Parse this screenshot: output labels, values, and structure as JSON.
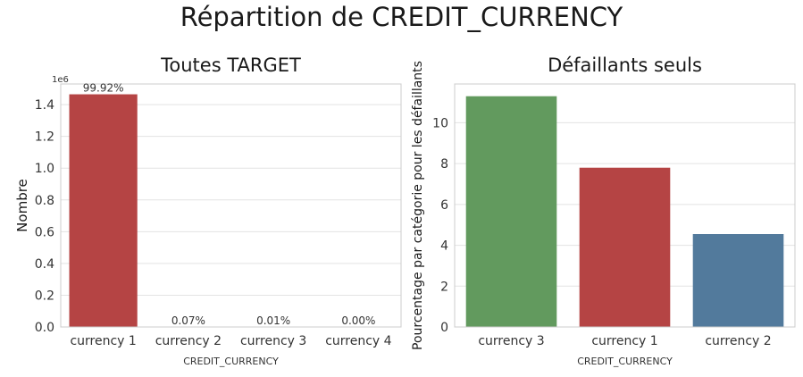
{
  "figure": {
    "title": "Répartition de CREDIT_CURRENCY"
  },
  "chart_data": [
    {
      "type": "bar",
      "title": "Toutes TARGET",
      "xlabel": "CREDIT_CURRENCY",
      "ylabel": "Nombre",
      "offset_label": "1e6",
      "categories": [
        "currency 1",
        "currency 2",
        "currency 3",
        "currency 4"
      ],
      "values": [
        1.465,
        0.00103,
        0.00017,
        1e-05
      ],
      "data_labels": [
        "99.92%",
        "0.07%",
        "0.01%",
        "0.00%"
      ],
      "colors": [
        "#b54444",
        "#b54444",
        "#b54444",
        "#b54444"
      ],
      "ylim": [
        0,
        1.53
      ],
      "yticks": [
        0.0,
        0.2,
        0.4,
        0.6,
        0.8,
        1.0,
        1.2,
        1.4
      ],
      "ytick_labels": [
        "0.0",
        "0.2",
        "0.4",
        "0.6",
        "0.8",
        "1.0",
        "1.2",
        "1.4"
      ],
      "grid": true
    },
    {
      "type": "bar",
      "title": "Défaillants seuls",
      "xlabel": "CREDIT_CURRENCY",
      "ylabel": "Pourcentage par catégorie pour les défaillants",
      "categories": [
        "currency 3",
        "currency 1",
        "currency 2"
      ],
      "values": [
        11.3,
        7.8,
        4.55
      ],
      "colors": [
        "#629a5e",
        "#b54444",
        "#527a9c"
      ],
      "ylim": [
        0,
        11.9
      ],
      "yticks": [
        0,
        2,
        4,
        6,
        8,
        10
      ],
      "ytick_labels": [
        "0",
        "2",
        "4",
        "6",
        "8",
        "10"
      ],
      "grid": true
    }
  ]
}
